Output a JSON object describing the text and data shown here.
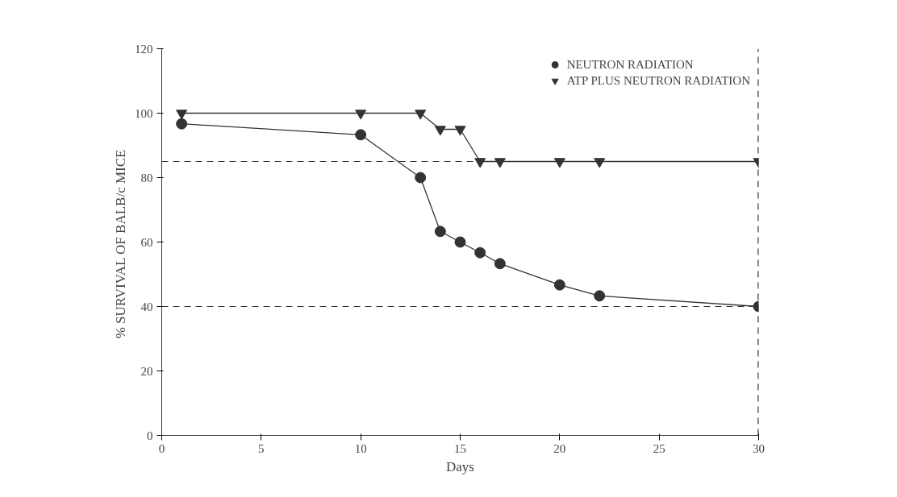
{
  "chart_data": {
    "type": "line",
    "xlabel": "Days",
    "ylabel": "%  SURVIVAL OF BALB/c MICE",
    "xlim": [
      0,
      30
    ],
    "ylim": [
      0,
      120
    ],
    "xticks": [
      0,
      5,
      10,
      15,
      20,
      25,
      30
    ],
    "yticks": [
      0,
      20,
      40,
      60,
      80,
      100,
      120
    ],
    "grid": false,
    "legend": "top right",
    "series": [
      {
        "name": "NEUTRON RADIATION",
        "color": "#333333",
        "marker": "circle",
        "x": [
          1,
          10,
          13,
          14,
          15,
          16,
          17,
          20,
          22,
          30
        ],
        "values": [
          96.7,
          93.3,
          80,
          63.3,
          60,
          56.7,
          53.3,
          46.7,
          43.3,
          40
        ]
      },
      {
        "name": "ATP PLUS NEUTRON RADIATION",
        "color": "#333333",
        "marker": "triangle",
        "x": [
          1,
          10,
          13,
          14,
          15,
          16,
          17,
          20,
          22,
          30
        ],
        "values": [
          100,
          100,
          100,
          95,
          95,
          85,
          85,
          85,
          85,
          85
        ]
      }
    ],
    "ref_lines": [
      {
        "axis": "y",
        "value": 85,
        "line_style": "dashed",
        "color": "#333333"
      },
      {
        "axis": "y",
        "value": 40,
        "line_style": "dashed",
        "color": "#333333"
      },
      {
        "axis": "x",
        "value": 30,
        "line_style": "dashed",
        "color": "#333333"
      }
    ]
  }
}
